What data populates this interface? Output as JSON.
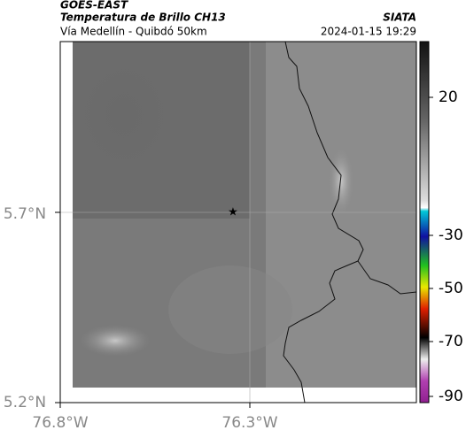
{
  "header": {
    "title": "GOES-EAST",
    "subtitle": "Temperatura de Brillo CH13",
    "source": "SIATA",
    "route": "Vía Medellín - Quibdó 50km",
    "timestamp": "2024-01-15 19:29"
  },
  "map": {
    "lat_labels": [
      "5.7°N",
      "5.2°N"
    ],
    "lon_labels": [
      "76.8°W",
      "76.3°W"
    ]
  },
  "colorbar": {
    "ticks": [
      20,
      -30,
      -50,
      -70,
      -90
    ]
  }
}
